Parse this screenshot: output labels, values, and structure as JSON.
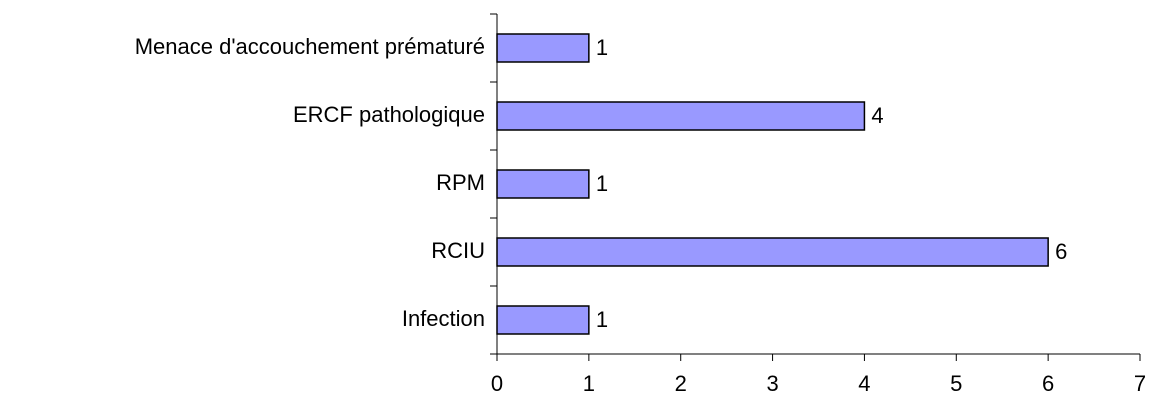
{
  "chart_data": {
    "type": "bar",
    "orientation": "horizontal",
    "categories": [
      "Menace d'accouchement prématuré",
      "ERCF pathologique",
      "RPM",
      "RCIU",
      "Infection"
    ],
    "values": [
      1,
      4,
      1,
      6,
      1
    ],
    "color": "#9999ff",
    "xlim": [
      0,
      7
    ],
    "xticks": [
      0,
      1,
      2,
      3,
      4,
      5,
      6,
      7
    ],
    "grid": false
  }
}
